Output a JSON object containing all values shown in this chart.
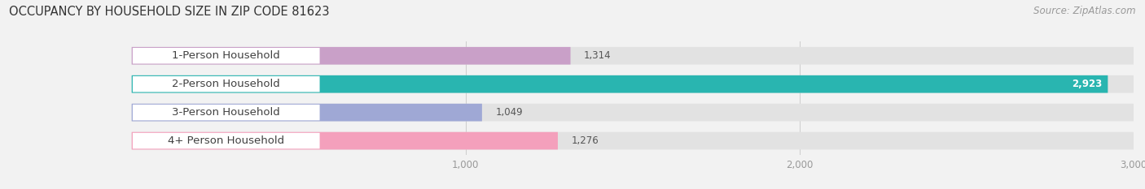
{
  "title": "OCCUPANCY BY HOUSEHOLD SIZE IN ZIP CODE 81623",
  "source": "Source: ZipAtlas.com",
  "categories": [
    "1-Person Household",
    "2-Person Household",
    "3-Person Household",
    "4+ Person Household"
  ],
  "values": [
    1314,
    2923,
    1049,
    1276
  ],
  "bar_colors": [
    "#c9a0c8",
    "#29b5b0",
    "#9fa8d5",
    "#f4a0bc"
  ],
  "background_color": "#f2f2f2",
  "bar_bg_color": "#e2e2e2",
  "xlim_max": 3000,
  "xticks": [
    1000,
    2000,
    3000
  ],
  "title_fontsize": 10.5,
  "label_fontsize": 9.5,
  "value_fontsize": 8.5,
  "source_fontsize": 8.5
}
